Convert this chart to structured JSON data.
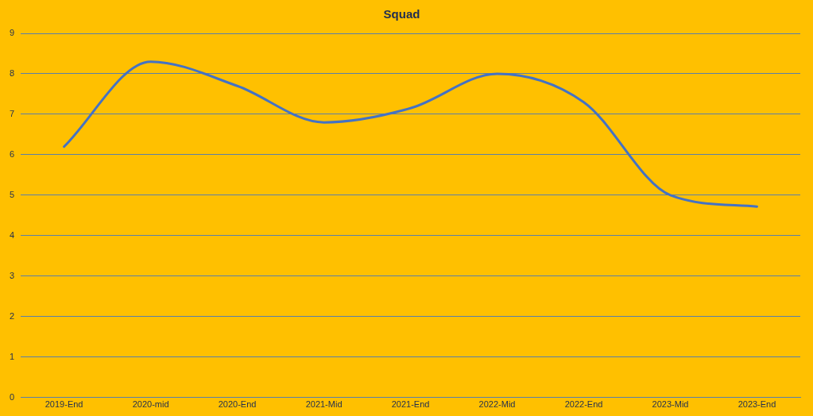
{
  "chart_data": {
    "type": "line",
    "title": "Squad",
    "categories": [
      "2019-End",
      "2020-mid",
      "2020-End",
      "2021-Mid",
      "2021-End",
      "2022-Mid",
      "2022-End",
      "2023-Mid",
      "2023-End"
    ],
    "series": [
      {
        "color": "#4472c4",
        "values": [
          6.2,
          8.3,
          7.7,
          6.8,
          7.15,
          8.0,
          7.3,
          5.0,
          4.72
        ]
      }
    ],
    "ylim": [
      0,
      9
    ],
    "yticks": [
      0,
      1,
      2,
      3,
      4,
      5,
      6,
      7,
      8,
      9
    ],
    "grid": "y",
    "legend": false,
    "marker": "none"
  }
}
